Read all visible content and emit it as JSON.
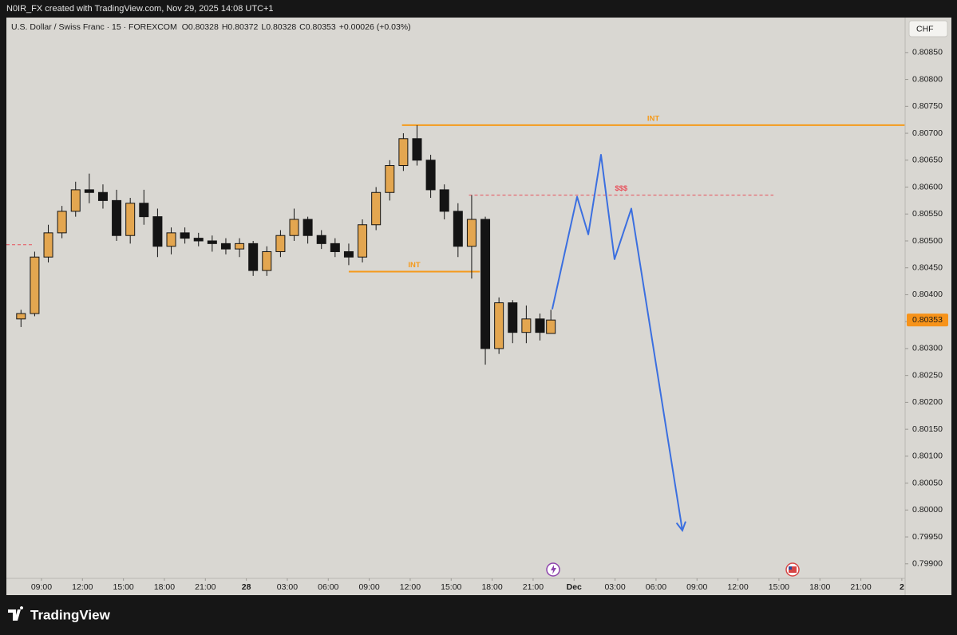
{
  "header": {
    "credit": "N0IR_FX created with TradingView.com, Nov 29, 2025 14:08 UTC+1"
  },
  "footer": {
    "brand": "TradingView"
  },
  "chart_data": {
    "type": "candlestick",
    "symbol": "U.S. Dollar / Swiss Franc · 15 · FOREXCOM",
    "ohlc": [
      "O0.80328",
      "H0.80372",
      "L0.80328",
      "C0.80353"
    ],
    "change": "+0.00026 (+0.03%)",
    "currency": "CHF",
    "up_color": "#e3a650",
    "down_color": "#141414",
    "grid": false,
    "xlim": [
      6.43,
      72.24
    ],
    "xticks": [
      {
        "value": 9,
        "label": "09:00"
      },
      {
        "value": 12,
        "label": "12:00"
      },
      {
        "value": 15,
        "label": "15:00"
      },
      {
        "value": 18,
        "label": "18:00"
      },
      {
        "value": 21,
        "label": "21:00"
      },
      {
        "value": 24,
        "label": "28"
      },
      {
        "value": 27,
        "label": "03:00"
      },
      {
        "value": 30,
        "label": "06:00"
      },
      {
        "value": 33,
        "label": "09:00"
      },
      {
        "value": 36,
        "label": "12:00"
      },
      {
        "value": 39,
        "label": "15:00"
      },
      {
        "value": 42,
        "label": "18:00"
      },
      {
        "value": 45,
        "label": "21:00"
      },
      {
        "value": 48,
        "label": "Dec"
      },
      {
        "value": 51,
        "label": "03:00"
      },
      {
        "value": 54,
        "label": "06:00"
      },
      {
        "value": 57,
        "label": "09:00"
      },
      {
        "value": 60,
        "label": "12:00"
      },
      {
        "value": 63,
        "label": "15:00"
      },
      {
        "value": 66,
        "label": "18:00"
      },
      {
        "value": 69,
        "label": "21:00"
      },
      {
        "value": 72,
        "label": "2"
      }
    ],
    "ylim": [
      0.79873,
      0.80915
    ],
    "yticks": [
      {
        "value": 0.799,
        "label": "0.79900"
      },
      {
        "value": 0.7995,
        "label": "0.79950"
      },
      {
        "value": 0.8,
        "label": "0.80000"
      },
      {
        "value": 0.8005,
        "label": "0.80050"
      },
      {
        "value": 0.801,
        "label": "0.80100"
      },
      {
        "value": 0.8015,
        "label": "0.80150"
      },
      {
        "value": 0.802,
        "label": "0.80200"
      },
      {
        "value": 0.8025,
        "label": "0.80250"
      },
      {
        "value": 0.803,
        "label": "0.80300"
      },
      {
        "value": 0.8035,
        "label": "0.80350"
      },
      {
        "value": 0.804,
        "label": "0.80400"
      },
      {
        "value": 0.8045,
        "label": "0.80450"
      },
      {
        "value": 0.805,
        "label": "0.80500"
      },
      {
        "value": 0.8055,
        "label": "0.80550"
      },
      {
        "value": 0.806,
        "label": "0.80600"
      },
      {
        "value": 0.8065,
        "label": "0.80650"
      },
      {
        "value": 0.807,
        "label": "0.80700"
      },
      {
        "value": 0.8075,
        "label": "0.80750"
      },
      {
        "value": 0.808,
        "label": "0.80800"
      },
      {
        "value": 0.8085,
        "label": "0.80850"
      }
    ],
    "last_price": 0.80353,
    "candles": {
      "x": [
        7.5,
        8.5,
        9.5,
        10.5,
        11.5,
        12.5,
        13.5,
        14.5,
        15.5,
        16.5,
        17.5,
        18.5,
        19.5,
        20.5,
        21.5,
        22.5,
        23.5,
        24.5,
        25.5,
        26.5,
        27.5,
        28.5,
        29.5,
        30.5,
        31.5,
        32.5,
        33.5,
        34.5,
        35.5,
        36.5,
        37.5,
        38.5,
        39.5,
        40.5,
        41.5,
        42.5,
        43.5,
        44.5,
        45.5,
        46.3
      ],
      "open": [
        0.80355,
        0.80365,
        0.8047,
        0.80515,
        0.80555,
        0.80595,
        0.8059,
        0.80575,
        0.8051,
        0.8057,
        0.80545,
        0.8049,
        0.80515,
        0.80505,
        0.805,
        0.80495,
        0.80485,
        0.80495,
        0.80445,
        0.8048,
        0.8051,
        0.8054,
        0.8051,
        0.80495,
        0.8048,
        0.8047,
        0.8053,
        0.8059,
        0.8064,
        0.8069,
        0.8065,
        0.80595,
        0.80555,
        0.8049,
        0.8054,
        0.803,
        0.80385,
        0.8033,
        0.80355,
        0.80328
      ],
      "high": [
        0.80372,
        0.8048,
        0.8053,
        0.80565,
        0.8061,
        0.80625,
        0.80605,
        0.80595,
        0.8058,
        0.80595,
        0.8056,
        0.80525,
        0.80525,
        0.80515,
        0.8051,
        0.80505,
        0.80505,
        0.805,
        0.8049,
        0.8052,
        0.8056,
        0.80545,
        0.8052,
        0.80505,
        0.80495,
        0.8054,
        0.806,
        0.8065,
        0.807,
        0.80715,
        0.8066,
        0.80605,
        0.8057,
        0.80585,
        0.80545,
        0.80395,
        0.8039,
        0.8038,
        0.80365,
        0.80372
      ],
      "low": [
        0.8034,
        0.8036,
        0.8046,
        0.80505,
        0.80545,
        0.8057,
        0.8056,
        0.805,
        0.80495,
        0.8053,
        0.8047,
        0.80475,
        0.80495,
        0.8049,
        0.8048,
        0.80475,
        0.8047,
        0.80435,
        0.80435,
        0.8047,
        0.805,
        0.80495,
        0.80485,
        0.8047,
        0.80455,
        0.8046,
        0.8052,
        0.80575,
        0.8063,
        0.8064,
        0.8058,
        0.8054,
        0.8047,
        0.8043,
        0.8027,
        0.8029,
        0.8031,
        0.8031,
        0.80315,
        0.80328
      ],
      "close": [
        0.80365,
        0.8047,
        0.80515,
        0.80555,
        0.80595,
        0.8059,
        0.80575,
        0.8051,
        0.8057,
        0.80545,
        0.8049,
        0.80515,
        0.80505,
        0.805,
        0.80495,
        0.80485,
        0.80495,
        0.80445,
        0.8048,
        0.8051,
        0.8054,
        0.8051,
        0.80495,
        0.8048,
        0.8047,
        0.8053,
        0.8059,
        0.8064,
        0.8069,
        0.8065,
        0.80595,
        0.80555,
        0.8049,
        0.8054,
        0.803,
        0.80385,
        0.8033,
        0.80355,
        0.8033,
        0.80353
      ]
    },
    "levels": [
      {
        "label": "INT",
        "value": 0.80715,
        "x": [
          35.4,
          72.2
        ],
        "color": "#f59a1b",
        "style": "solid"
      },
      {
        "label": "INT",
        "value": 0.80443,
        "x": [
          31.5,
          41.1
        ],
        "color": "#f59a1b",
        "style": "solid"
      },
      {
        "label": "$$$",
        "value": 0.80585,
        "x": [
          40.3,
          62.6
        ],
        "color": "#e8505b",
        "style": "dashed"
      },
      {
        "value": 0.80493,
        "x": [
          6.43,
          8.3
        ],
        "color": "#e8505b",
        "style": "dashed"
      }
    ],
    "projection": {
      "color": "#3b6fe0",
      "x": [
        46.4,
        48.22,
        49.04,
        49.97,
        50.96,
        52.19,
        55.93
      ],
      "y": [
        0.80373,
        0.80582,
        0.80512,
        0.8066,
        0.80466,
        0.8056,
        0.79962
      ]
    }
  }
}
